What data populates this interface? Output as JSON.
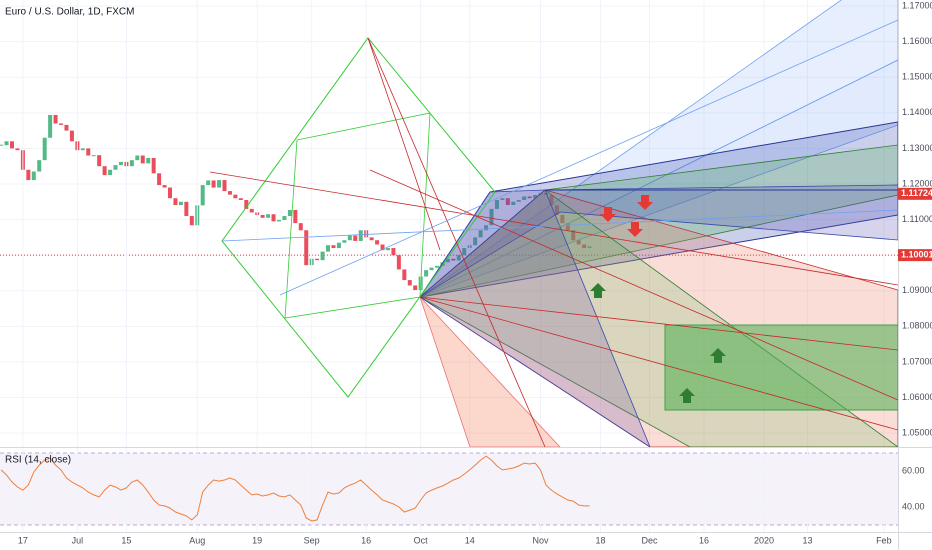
{
  "chart_data": [
    {
      "type": "candlestick",
      "title": "Euro / U.S. Dollar, 1D, FXCM",
      "x": [
        -4,
        -3,
        -2,
        -1,
        0,
        1,
        2,
        3,
        4,
        5,
        6,
        7,
        8,
        9,
        10,
        11,
        12,
        13,
        14,
        15,
        16,
        17,
        18,
        19,
        20,
        21,
        22,
        23,
        24,
        25,
        26,
        27,
        28,
        29,
        30,
        31,
        32,
        33,
        34,
        35,
        36,
        37,
        38,
        39,
        40,
        41,
        42,
        43,
        44,
        45,
        46,
        47,
        48,
        49,
        50,
        51,
        52,
        53,
        54,
        55,
        56,
        57,
        58,
        59,
        60,
        61,
        62,
        63,
        64,
        65,
        66,
        67,
        68,
        69,
        70,
        71,
        72,
        73,
        74,
        75,
        76,
        77,
        78,
        79,
        80,
        81,
        82,
        83,
        84,
        85,
        86,
        87,
        88,
        89,
        90,
        91,
        92,
        93,
        94,
        95,
        96,
        97,
        98,
        99,
        100,
        101,
        102,
        103,
        104
      ],
      "values": [
        1.1309,
        1.132,
        1.13,
        1.1295,
        1.124,
        1.1211,
        1.1235,
        1.1267,
        1.133,
        1.1394,
        1.137,
        1.1366,
        1.135,
        1.132,
        1.1295,
        1.13,
        1.128,
        1.1281,
        1.125,
        1.1225,
        1.124,
        1.1253,
        1.1262,
        1.125,
        1.1267,
        1.128,
        1.1258,
        1.1273,
        1.123,
        1.1197,
        1.119,
        1.116,
        1.1141,
        1.115,
        1.111,
        1.1084,
        1.114,
        1.1197,
        1.121,
        1.119,
        1.1211,
        1.118,
        1.117,
        1.116,
        1.1155,
        1.113,
        1.112,
        1.1113,
        1.1105,
        1.1115,
        1.1095,
        1.1099,
        1.111,
        1.1127,
        1.109,
        1.107,
        1.0972,
        1.099,
        1.0986,
        1.101,
        1.1028,
        1.102,
        1.1035,
        1.1042,
        1.1055,
        1.104,
        1.107,
        1.105,
        1.1042,
        1.103,
        1.1014,
        1.102,
        1.1,
        1.096,
        1.093,
        1.0915,
        1.0902,
        1.094,
        1.0958,
        1.0965,
        1.097,
        1.098,
        1.099,
        1.0985,
        1.1,
        1.102,
        1.1028,
        1.105,
        1.107,
        1.1084,
        1.113,
        1.1155,
        1.116,
        1.1141,
        1.115,
        1.1155,
        1.1165,
        1.116,
        1.1169,
        1.1175,
        1.1169,
        1.114,
        1.1113,
        1.109,
        1.107,
        1.1042,
        1.103,
        1.102,
        1.1025
      ],
      "up_color": "#53b987",
      "down_color": "#eb4d5c",
      "xlim": [
        -4.2,
        160.6
      ],
      "ylim": [
        1.0461,
        1.1717
      ],
      "yticks": [
        {
          "value": 1.17,
          "label": "1.17000"
        },
        {
          "value": 1.16,
          "label": "1.16000"
        },
        {
          "value": 1.15,
          "label": "1.15000"
        },
        {
          "value": 1.14,
          "label": "1.14000"
        },
        {
          "value": 1.13,
          "label": "1.13000"
        },
        {
          "value": 1.12,
          "label": "1.12000"
        },
        {
          "value": 1.11,
          "label": "1.11000"
        },
        {
          "value": 1.1,
          "label": "1.10000"
        },
        {
          "value": 1.09,
          "label": "1.09000"
        },
        {
          "value": 1.08,
          "label": "1.08000"
        },
        {
          "value": 1.07,
          "label": "1.07000"
        },
        {
          "value": 1.06,
          "label": "1.06000"
        },
        {
          "value": 1.05,
          "label": "1.05000"
        }
      ],
      "markers": [
        {
          "value": 1.11724,
          "label": "1.11724",
          "color": "#e53935",
          "line": false
        },
        {
          "value": 1.10001,
          "label": "1.10001",
          "color": "#e53935",
          "line": true
        }
      ],
      "grid": true
    },
    {
      "type": "line",
      "title": "RSI (14, close)",
      "x": [
        -4,
        -3,
        -2,
        -1,
        0,
        1,
        2,
        3,
        4,
        5,
        6,
        7,
        8,
        9,
        10,
        11,
        12,
        13,
        14,
        15,
        16,
        17,
        18,
        19,
        20,
        21,
        22,
        23,
        24,
        25,
        26,
        27,
        28,
        29,
        30,
        31,
        32,
        33,
        34,
        35,
        36,
        37,
        38,
        39,
        40,
        41,
        42,
        43,
        44,
        45,
        46,
        47,
        48,
        49,
        50,
        51,
        52,
        53,
        54,
        55,
        56,
        57,
        58,
        59,
        60,
        61,
        62,
        63,
        64,
        65,
        66,
        67,
        68,
        69,
        70,
        71,
        72,
        73,
        74,
        75,
        76,
        77,
        78,
        79,
        80,
        81,
        82,
        83,
        84,
        85,
        86,
        87,
        88,
        89,
        90,
        91,
        92,
        93,
        94,
        95,
        96,
        97,
        98,
        99,
        100,
        101,
        102,
        103,
        104
      ],
      "values": [
        60.6,
        57.8,
        53.9,
        51.1,
        49.4,
        52.2,
        59.4,
        63.3,
        66.1,
        67.2,
        63.3,
        60.6,
        56.1,
        53.9,
        52.2,
        50.6,
        48.3,
        46.7,
        45.6,
        49.4,
        52.2,
        51.1,
        49.4,
        50.6,
        53.9,
        55.0,
        52.2,
        48.3,
        43.9,
        41.1,
        40.6,
        39.4,
        37.2,
        36.1,
        35.0,
        32.8,
        35.6,
        48.3,
        52.2,
        55.0,
        54.4,
        55.0,
        56.1,
        55.0,
        52.2,
        49.4,
        46.7,
        47.2,
        46.1,
        46.7,
        47.8,
        46.1,
        45.6,
        46.7,
        43.9,
        41.1,
        33.9,
        32.2,
        32.8,
        41.1,
        48.3,
        47.2,
        47.8,
        50.6,
        52.2,
        53.3,
        55.0,
        52.2,
        49.4,
        46.7,
        43.9,
        42.8,
        41.7,
        40.0,
        37.2,
        38.3,
        39.4,
        43.9,
        47.8,
        49.4,
        50.6,
        51.7,
        53.3,
        55.0,
        56.1,
        58.3,
        60.6,
        63.3,
        66.1,
        68.3,
        66.1,
        62.8,
        60.6,
        61.1,
        61.7,
        62.8,
        64.4,
        63.9,
        64.4,
        60.6,
        52.2,
        49.4,
        47.2,
        45.6,
        43.9,
        43.3,
        41.1,
        40.6,
        40.6
      ],
      "color": "#f0803c",
      "band": [
        30,
        70
      ],
      "band_color": "#7e57c2",
      "xlim": [
        -4.2,
        160.6
      ],
      "ylim": [
        26.1,
        72.8
      ],
      "yticks": [
        {
          "value": 60,
          "label": "60.00"
        },
        {
          "value": 40,
          "label": "40.00"
        }
      ],
      "xticks": [
        {
          "value": 0,
          "label": "17"
        },
        {
          "value": 10,
          "label": "Jul"
        },
        {
          "value": 19,
          "label": "15"
        },
        {
          "value": 32,
          "label": "Aug"
        },
        {
          "value": 43,
          "label": "19"
        },
        {
          "value": 53,
          "label": "Sep"
        },
        {
          "value": 63,
          "label": "16"
        },
        {
          "value": 73,
          "label": "Oct"
        },
        {
          "value": 82,
          "label": "14"
        },
        {
          "value": 95,
          "label": "Nov"
        },
        {
          "value": 106,
          "label": "18"
        },
        {
          "value": 115,
          "label": "Dec"
        },
        {
          "value": 125,
          "label": "16"
        },
        {
          "value": 136,
          "label": "2020"
        },
        {
          "value": 144,
          "label": "13"
        },
        {
          "value": 158,
          "label": "Feb"
        }
      ],
      "grid": true
    }
  ]
}
